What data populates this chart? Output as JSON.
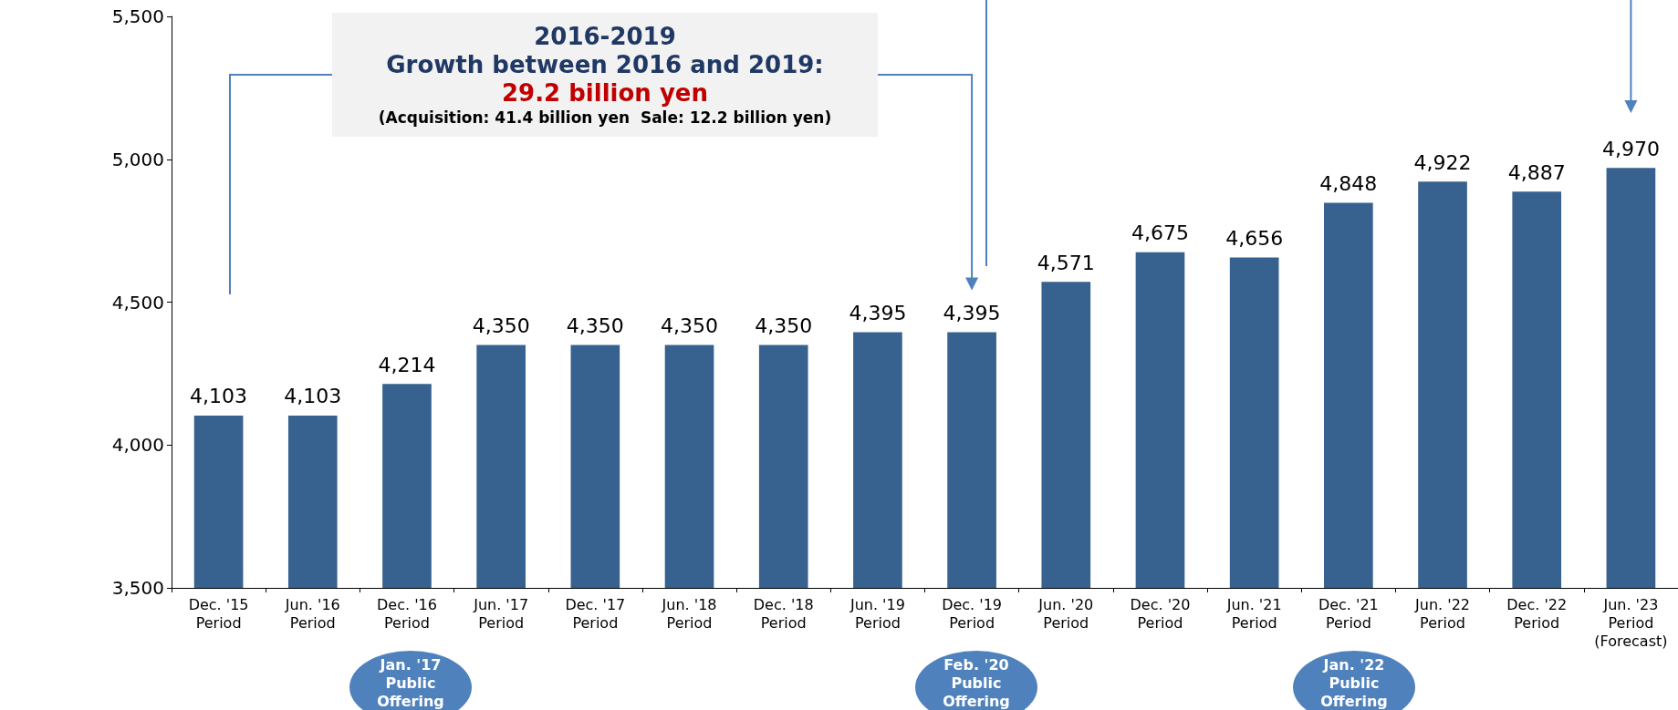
{
  "chart_data": {
    "type": "bar",
    "categories": [
      "Dec. '15\nPeriod",
      "Jun. '16\nPeriod",
      "Dec. '16\nPeriod",
      "Jun. '17\nPeriod",
      "Dec. '17\nPeriod",
      "Jun. '18\nPeriod",
      "Dec. '18\nPeriod",
      "Jun. '19\nPeriod",
      "Dec. '19\nPeriod",
      "Jun. '20\nPeriod",
      "Dec. '20\nPeriod",
      "Jun. '21\nPeriod",
      "Dec. '21\nPeriod",
      "Jun. '22\nPeriod",
      "Dec. '22\nPeriod",
      "Jun. '23\nPeriod\n(Forecast)"
    ],
    "values": [
      4103,
      4103,
      4214,
      4350,
      4350,
      4350,
      4350,
      4395,
      4395,
      4571,
      4675,
      4656,
      4848,
      4922,
      4887,
      4970
    ],
    "value_labels": [
      "4,103",
      "4,103",
      "4,214",
      "4,350",
      "4,350",
      "4,350",
      "4,350",
      "4,395",
      "4,395",
      "4,571",
      "4,675",
      "4,656",
      "4,848",
      "4,922",
      "4,887",
      "4,970"
    ],
    "color": "#37618f",
    "ylim": [
      3500,
      5500
    ],
    "yticks": [
      {
        "value": 3500,
        "label": "3,500"
      },
      {
        "value": 4000,
        "label": "4,000"
      },
      {
        "value": 4500,
        "label": "4,500"
      },
      {
        "value": 5000,
        "label": "5,000"
      },
      {
        "value": 5500,
        "label": "5,500"
      }
    ],
    "grid": false,
    "annotations": [
      "2016-2019",
      "Growth between 2016 and 2019:",
      "29.2 billion yen",
      "(Acquisition: 41.4 billion yen  Sale: 12.2 billion yen)",
      "Jan. '17\nPublic\nOffering",
      "Feb. '20\nPublic\nOffering",
      "Jan. '22\nPublic\nOffering"
    ]
  }
}
